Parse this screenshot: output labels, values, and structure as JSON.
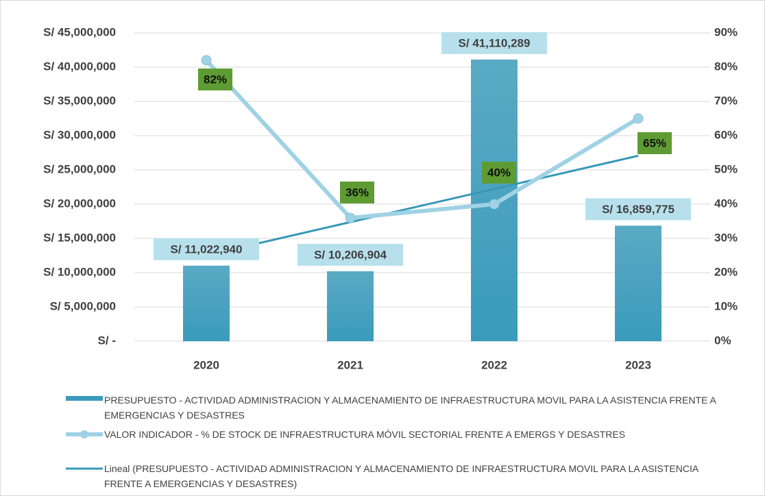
{
  "chart_data": {
    "type": "bar",
    "categories": [
      "2020",
      "2021",
      "2022",
      "2023"
    ],
    "series": [
      {
        "name": "PRESUPUESTO - ACTIVIDAD ADMINISTRACION Y ALMACENAMIENTO DE INFRAESTRUCTURA MOVIL PARA LA ASISTENCIA FRENTE A EMERGENCIAS Y DESASTRES",
        "type": "bar",
        "color": "#3a9bbb",
        "values": [
          11022940,
          10206904,
          41110289,
          16859775
        ],
        "value_labels": [
          "S/ 11,022,940",
          "S/ 10,206,904",
          "S/ 41,110,289",
          "S/ 16,859,775"
        ]
      },
      {
        "name": "VALOR INDICADOR - % DE STOCK DE INFRAESTRUCTURA MÓVIL SECTORIAL FRENTE A EMERGS Y DESASTRES",
        "type": "line",
        "axis": "y2",
        "color": "#9fd2e4",
        "values": [
          82,
          36,
          40,
          65
        ],
        "value_labels": [
          "82%",
          "36%",
          "40%",
          "65%"
        ]
      }
    ],
    "trendline": {
      "name": "Lineal (PRESUPUESTO - ACTIVIDAD ADMINISTRACION Y ALMACENAMIENTO DE INFRAESTRUCTURA MOVIL PARA LA ASISTENCIA FRENTE A EMERGENCIAS Y DESASTRES)",
      "series": 0,
      "color": "#3798b6"
    },
    "ylim": [
      0,
      45000000
    ],
    "yticks": [
      {
        "value": 0,
        "label": "S/ -"
      },
      {
        "value": 5000000,
        "label": "S/ 5,000,000"
      },
      {
        "value": 10000000,
        "label": "S/ 10,000,000"
      },
      {
        "value": 15000000,
        "label": "S/ 15,000,000"
      },
      {
        "value": 20000000,
        "label": "S/ 20,000,000"
      },
      {
        "value": 25000000,
        "label": "S/ 25,000,000"
      },
      {
        "value": 30000000,
        "label": "S/ 30,000,000"
      },
      {
        "value": 35000000,
        "label": "S/ 35,000,000"
      },
      {
        "value": 40000000,
        "label": "S/ 40,000,000"
      },
      {
        "value": 45000000,
        "label": "S/ 45,000,000"
      }
    ],
    "y2lim": [
      0,
      90
    ],
    "y2ticks": [
      {
        "value": 0,
        "label": "0%"
      },
      {
        "value": 10,
        "label": "10%"
      },
      {
        "value": 20,
        "label": "20%"
      },
      {
        "value": 30,
        "label": "30%"
      },
      {
        "value": 40,
        "label": "40%"
      },
      {
        "value": 50,
        "label": "50%"
      },
      {
        "value": 60,
        "label": "60%"
      },
      {
        "value": 70,
        "label": "70%"
      },
      {
        "value": 80,
        "label": "80%"
      },
      {
        "value": 90,
        "label": "90%"
      }
    ],
    "grid": true,
    "legend": "bottom"
  }
}
